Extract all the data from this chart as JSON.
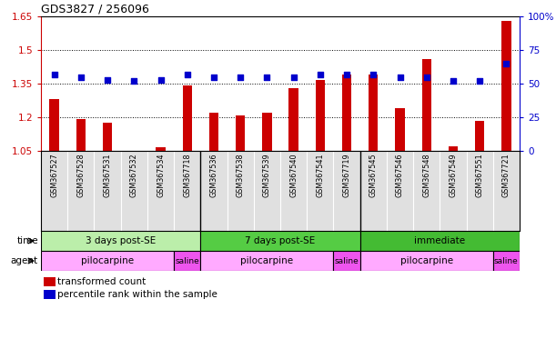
{
  "title": "GDS3827 / 256096",
  "samples": [
    "GSM367527",
    "GSM367528",
    "GSM367531",
    "GSM367532",
    "GSM367534",
    "GSM367718",
    "GSM367536",
    "GSM367538",
    "GSM367539",
    "GSM367540",
    "GSM367541",
    "GSM367719",
    "GSM367545",
    "GSM367546",
    "GSM367548",
    "GSM367549",
    "GSM367551",
    "GSM367721"
  ],
  "bar_values": [
    1.28,
    1.19,
    1.175,
    1.05,
    1.065,
    1.34,
    1.22,
    1.21,
    1.22,
    1.33,
    1.365,
    1.39,
    1.39,
    1.24,
    1.46,
    1.07,
    1.185,
    1.63
  ],
  "dot_values": [
    57,
    55,
    53,
    52,
    53,
    57,
    55,
    55,
    55,
    55,
    57,
    57,
    57,
    55,
    55,
    52,
    52,
    65
  ],
  "bar_bottom": 1.05,
  "ylim_left": [
    1.05,
    1.65
  ],
  "ylim_right": [
    0,
    100
  ],
  "yticks_left": [
    1.05,
    1.2,
    1.35,
    1.5,
    1.65
  ],
  "yticks_right": [
    0,
    25,
    50,
    75,
    100
  ],
  "bar_color": "#cc0000",
  "dot_color": "#0000cc",
  "left_axis_color": "#cc0000",
  "right_axis_color": "#0000cc",
  "time_groups": [
    {
      "label": "3 days post-SE",
      "start": 0,
      "end": 5,
      "color": "#bbeeaa"
    },
    {
      "label": "7 days post-SE",
      "start": 6,
      "end": 11,
      "color": "#55cc44"
    },
    {
      "label": "immediate",
      "start": 12,
      "end": 17,
      "color": "#44bb33"
    }
  ],
  "agent_groups": [
    {
      "label": "pilocarpine",
      "start": 0,
      "end": 4,
      "color": "#ffaaff"
    },
    {
      "label": "saline",
      "start": 5,
      "end": 5,
      "color": "#ee55ee"
    },
    {
      "label": "pilocarpine",
      "start": 6,
      "end": 10,
      "color": "#ffaaff"
    },
    {
      "label": "saline",
      "start": 11,
      "end": 11,
      "color": "#ee55ee"
    },
    {
      "label": "pilocarpine",
      "start": 12,
      "end": 16,
      "color": "#ffaaff"
    },
    {
      "label": "saline",
      "start": 17,
      "end": 17,
      "color": "#ee55ee"
    }
  ],
  "legend_items": [
    {
      "label": "transformed count",
      "color": "#cc0000"
    },
    {
      "label": "percentile rank within the sample",
      "color": "#0000cc"
    }
  ],
  "dotted_yticks": [
    1.2,
    1.35,
    1.5
  ],
  "group_dividers": [
    5.5,
    11.5
  ]
}
